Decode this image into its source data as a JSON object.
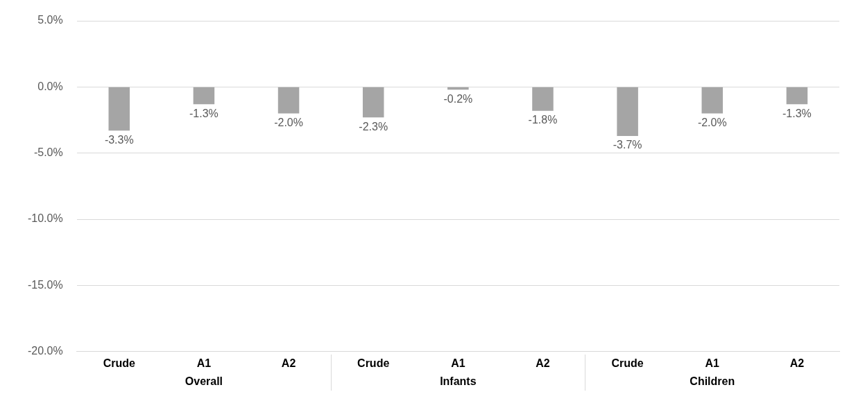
{
  "chart_data": {
    "type": "bar",
    "categories": [
      "Crude",
      "A1",
      "A2",
      "Crude",
      "A1",
      "A2",
      "Crude",
      "A1",
      "A2"
    ],
    "values": [
      -3.3,
      -1.3,
      -2.0,
      -2.3,
      -0.2,
      -1.8,
      -3.7,
      -2.0,
      -1.3
    ],
    "value_labels": [
      "-3.3%",
      "-1.3%",
      "-2.0%",
      "-2.3%",
      "-0.2%",
      "-1.8%",
      "-3.7%",
      "-2.0%",
      "-1.3%"
    ],
    "color": "#a5a5a5",
    "ylim": [
      -20,
      5
    ],
    "yticks": [
      {
        "value": 5,
        "label": "5.0%"
      },
      {
        "value": 0,
        "label": "0.0%"
      },
      {
        "value": -5,
        "label": "-5.0%"
      },
      {
        "value": -10,
        "label": "-10.0%"
      },
      {
        "value": -15,
        "label": "-15.0%"
      },
      {
        "value": -20,
        "label": "-20.0%"
      }
    ],
    "grid": "y",
    "legend": false,
    "annotations": [
      "Overall",
      "Infants",
      "Children"
    ]
  }
}
